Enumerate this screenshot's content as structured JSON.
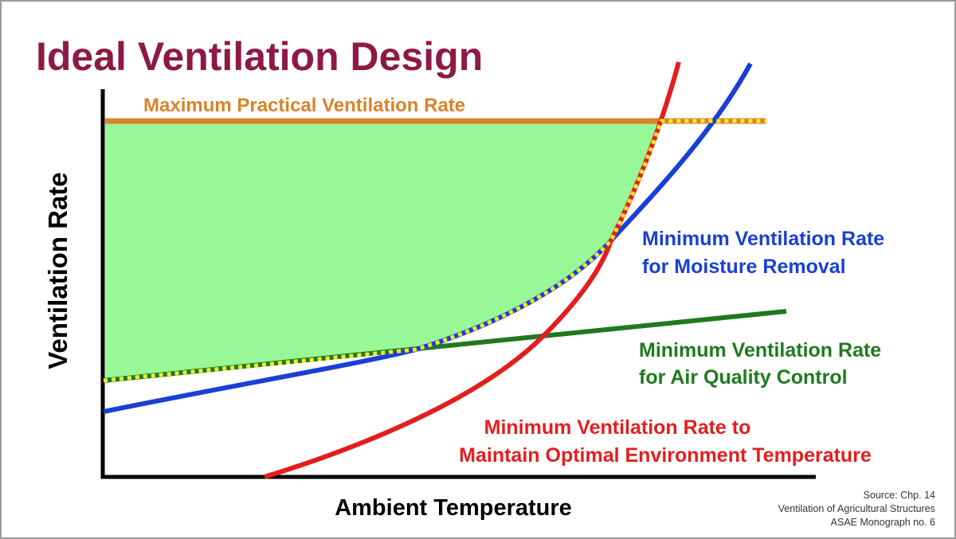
{
  "title": "Ideal Ventilation Design",
  "y_axis_label": "Ventilation Rate",
  "x_axis_label": "Ambient Temperature",
  "curves": {
    "max_practical": {
      "label": "Maximum Practical Ventilation Rate",
      "color": "#d9832a"
    },
    "moisture": {
      "label_line1": "Minimum Ventilation Rate",
      "label_line2": "for Moisture Removal",
      "color": "#1a3fd6"
    },
    "air_quality": {
      "label_line1": "Minimum Ventilation Rate",
      "label_line2": "for Air Quality Control",
      "color": "#1f7a1f"
    },
    "temperature": {
      "label_line1": "Minimum Ventilation Rate to",
      "label_line2": "Maintain Optimal Environment Temperature",
      "color": "#e41e1e"
    }
  },
  "ideal_region_color": "#98f898",
  "ideal_boundary_dash_color": "#f2ea2a",
  "title_color": "#8c1a44",
  "source": {
    "line1": "Source: Chp. 14",
    "line2": "Ventilation of Agricultural Structures",
    "line3": "ASAE Monograph no. 6"
  }
}
